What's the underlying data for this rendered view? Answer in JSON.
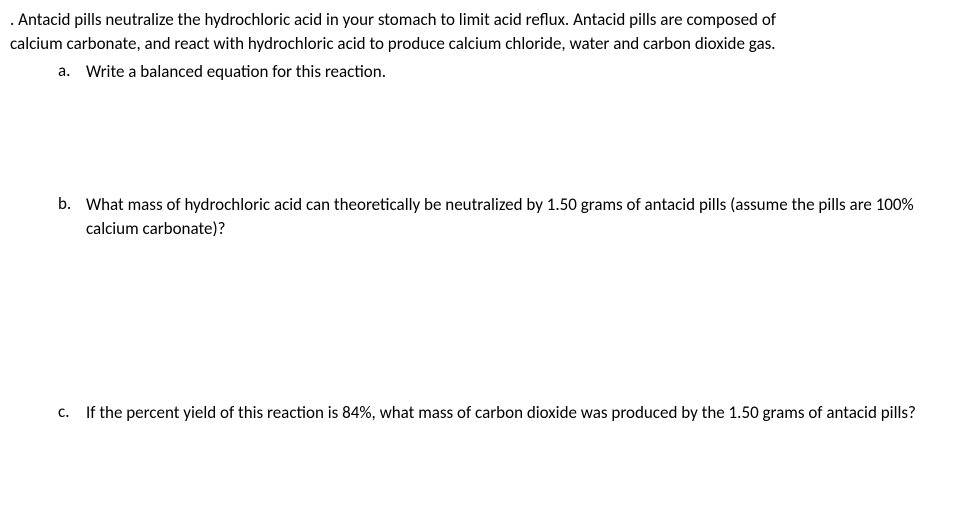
{
  "question": {
    "intro_line1": ". Antacid pills neutralize the hydrochloric acid in your stomach to limit acid reflux. Antacid pills are composed of",
    "intro_line2": "calcium carbonate, and react with hydrochloric acid to produce calcium chloride, water and carbon dioxide gas.",
    "parts": {
      "a": {
        "label": "a.",
        "text": "Write a balanced equation for this reaction."
      },
      "b": {
        "label": "b.",
        "text": "What mass of hydrochloric acid can theoretically be neutralized by 1.50 grams of antacid pills (assume the pills are 100% calcium carbonate)?"
      },
      "c": {
        "label": "c.",
        "text": "If the percent yield of this reaction is 84%, what mass of carbon dioxide was produced by the 1.50 grams of antacid pills?"
      }
    }
  },
  "styling": {
    "background_color": "#ffffff",
    "text_color": "#000000",
    "font_family": "Calibri",
    "font_size_pt": 13,
    "line_height": 1.4
  }
}
